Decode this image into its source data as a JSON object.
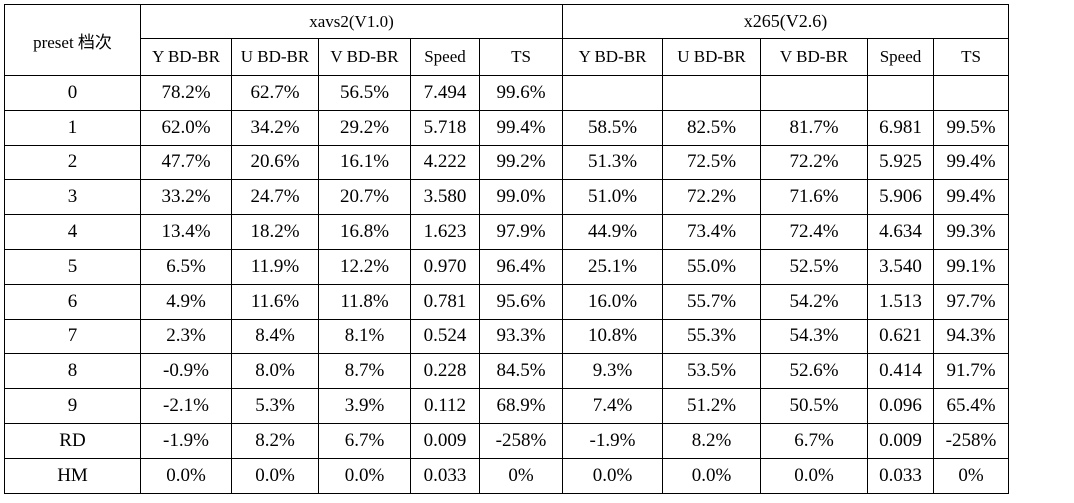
{
  "header": {
    "preset_label": "preset 档次",
    "groups": [
      {
        "name": "xavs2(V1.0)"
      },
      {
        "name": "x265(V2.6)"
      }
    ],
    "columns": [
      "Y BD-BR",
      "U BD-BR",
      "V BD-BR",
      "Speed",
      "TS"
    ]
  },
  "rows": [
    {
      "preset": "0",
      "xavs2": [
        "78.2%",
        "62.7%",
        "56.5%",
        "7.494",
        "99.6%"
      ],
      "x265": [
        "",
        "",
        "",
        "",
        ""
      ]
    },
    {
      "preset": "1",
      "xavs2": [
        "62.0%",
        "34.2%",
        "29.2%",
        "5.718",
        "99.4%"
      ],
      "x265": [
        "58.5%",
        "82.5%",
        "81.7%",
        "6.981",
        "99.5%"
      ]
    },
    {
      "preset": "2",
      "xavs2": [
        "47.7%",
        "20.6%",
        "16.1%",
        "4.222",
        "99.2%"
      ],
      "x265": [
        "51.3%",
        "72.5%",
        "72.2%",
        "5.925",
        "99.4%"
      ]
    },
    {
      "preset": "3",
      "xavs2": [
        "33.2%",
        "24.7%",
        "20.7%",
        "3.580",
        "99.0%"
      ],
      "x265": [
        "51.0%",
        "72.2%",
        "71.6%",
        "5.906",
        "99.4%"
      ]
    },
    {
      "preset": "4",
      "xavs2": [
        "13.4%",
        "18.2%",
        "16.8%",
        "1.623",
        "97.9%"
      ],
      "x265": [
        "44.9%",
        "73.4%",
        "72.4%",
        "4.634",
        "99.3%"
      ]
    },
    {
      "preset": "5",
      "xavs2": [
        "6.5%",
        "11.9%",
        "12.2%",
        "0.970",
        "96.4%"
      ],
      "x265": [
        "25.1%",
        "55.0%",
        "52.5%",
        "3.540",
        "99.1%"
      ]
    },
    {
      "preset": "6",
      "xavs2": [
        "4.9%",
        "11.6%",
        "11.8%",
        "0.781",
        "95.6%"
      ],
      "x265": [
        "16.0%",
        "55.7%",
        "54.2%",
        "1.513",
        "97.7%"
      ]
    },
    {
      "preset": "7",
      "xavs2": [
        "2.3%",
        "8.4%",
        "8.1%",
        "0.524",
        "93.3%"
      ],
      "x265": [
        "10.8%",
        "55.3%",
        "54.3%",
        "0.621",
        "94.3%"
      ]
    },
    {
      "preset": "8",
      "xavs2": [
        "-0.9%",
        "8.0%",
        "8.7%",
        "0.228",
        "84.5%"
      ],
      "x265": [
        "9.3%",
        "53.5%",
        "52.6%",
        "0.414",
        "91.7%"
      ]
    },
    {
      "preset": "9",
      "xavs2": [
        "-2.1%",
        "5.3%",
        "3.9%",
        "0.112",
        "68.9%"
      ],
      "x265": [
        "7.4%",
        "51.2%",
        "50.5%",
        "0.096",
        "65.4%"
      ]
    },
    {
      "preset": "RD",
      "xavs2": [
        "-1.9%",
        "8.2%",
        "6.7%",
        "0.009",
        "-258%"
      ],
      "x265": [
        "-1.9%",
        "8.2%",
        "6.7%",
        "0.009",
        "-258%"
      ]
    },
    {
      "preset": "HM",
      "xavs2": [
        "0.0%",
        "0.0%",
        "0.0%",
        "0.033",
        "0%"
      ],
      "x265": [
        "0.0%",
        "0.0%",
        "0.0%",
        "0.033",
        "0%"
      ]
    }
  ]
}
